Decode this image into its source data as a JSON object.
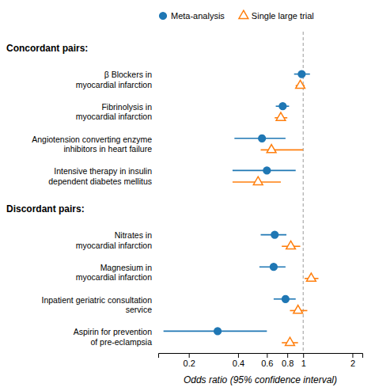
{
  "chart_data": {
    "type": "forest",
    "xlabel": "Odds ratio (95% confidence interval)",
    "log": "x",
    "grid": false,
    "legend": "top",
    "xlim": [
      0.13,
      2.3
    ],
    "xticks": [
      0.2,
      0.4,
      0.6,
      0.8,
      1,
      2
    ],
    "reference_x": 1.0,
    "sections": [
      {
        "title": "Concordant pairs:",
        "categories": [
          "β Blockers in\nmyocardial infarction",
          "Fibrinolysis in\nmyocardial infarction",
          "Angiotension converting enzyme\ninhibitors in heart failure",
          "Intensive therapy in insulin\ndependent diabetes mellitus"
        ]
      },
      {
        "title": "Discordant pairs:",
        "categories": [
          "Nitrates in\nmyocardial infarction",
          "Magnesium in\nmyocardial infarction",
          "Inpatient geriatric consultation\nservice",
          "Aspirin for prevention\nof pre-eclampsia"
        ]
      }
    ],
    "series": [
      {
        "name": "Meta-analysis",
        "marker": "circle",
        "values": [
          0.98,
          0.75,
          0.56,
          0.6,
          0.67,
          0.66,
          0.78,
          0.3
        ],
        "lower": [
          0.88,
          0.68,
          0.38,
          0.37,
          0.55,
          0.54,
          0.66,
          0.14
        ],
        "upper": [
          1.1,
          0.82,
          0.78,
          0.9,
          0.79,
          0.78,
          0.9,
          0.6
        ]
      },
      {
        "name": "Single large trial",
        "marker": "triangle-open",
        "values": [
          0.96,
          0.73,
          0.64,
          0.53,
          0.84,
          1.12,
          0.93,
          0.83
        ],
        "lower": [
          0.9,
          0.67,
          0.55,
          0.37,
          0.74,
          1.02,
          0.83,
          0.74
        ],
        "upper": [
          1.02,
          0.8,
          1.0,
          0.73,
          0.96,
          1.24,
          1.06,
          0.93
        ]
      }
    ]
  }
}
